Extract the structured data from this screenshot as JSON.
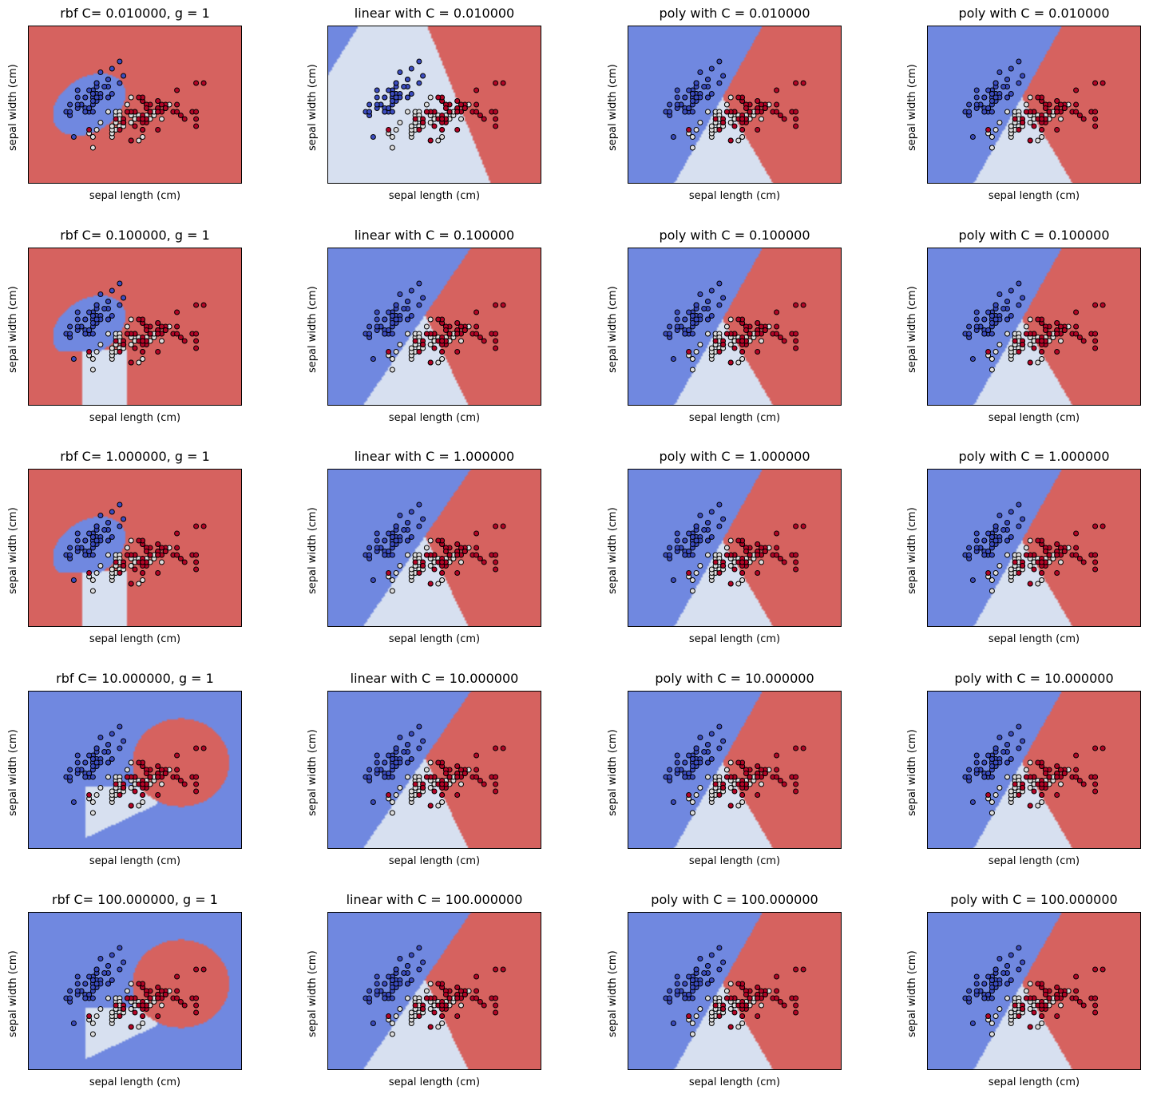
{
  "chart_data": {
    "type": "scatter",
    "layout": "5x4 grid",
    "xlabel": "sepal length (cm)",
    "ylabel": "sepal width (cm)",
    "xlim": [
      3.3,
      8.9
    ],
    "ylim": [
      1.0,
      5.4
    ],
    "ticks_visible": false,
    "class_colors": {
      "setosa": "#3b4cc0",
      "versicolor": "#dddddd",
      "virginica": "#b40426"
    },
    "region_colors": {
      "setosa": "#7088e0",
      "versicolor": "#d7e0f0",
      "virginica": "#d6625f"
    },
    "points": {
      "setosa": [
        [
          5.1,
          3.5
        ],
        [
          4.9,
          3.0
        ],
        [
          4.7,
          3.2
        ],
        [
          4.6,
          3.1
        ],
        [
          5.0,
          3.6
        ],
        [
          5.4,
          3.9
        ],
        [
          4.6,
          3.4
        ],
        [
          5.0,
          3.4
        ],
        [
          4.4,
          2.9
        ],
        [
          4.9,
          3.1
        ],
        [
          5.4,
          3.7
        ],
        [
          4.8,
          3.4
        ],
        [
          4.8,
          3.0
        ],
        [
          4.3,
          3.0
        ],
        [
          5.8,
          4.0
        ],
        [
          5.7,
          4.4
        ],
        [
          5.4,
          3.9
        ],
        [
          5.1,
          3.5
        ],
        [
          5.7,
          3.8
        ],
        [
          5.1,
          3.8
        ],
        [
          5.4,
          3.4
        ],
        [
          5.1,
          3.7
        ],
        [
          4.6,
          3.6
        ],
        [
          5.1,
          3.3
        ],
        [
          4.8,
          3.4
        ],
        [
          5.0,
          3.0
        ],
        [
          5.0,
          3.4
        ],
        [
          5.2,
          3.5
        ],
        [
          5.2,
          3.4
        ],
        [
          4.7,
          3.2
        ],
        [
          4.8,
          3.1
        ],
        [
          5.4,
          3.4
        ],
        [
          5.2,
          4.1
        ],
        [
          5.5,
          4.2
        ],
        [
          4.9,
          3.1
        ],
        [
          5.0,
          3.2
        ],
        [
          5.5,
          3.5
        ],
        [
          4.9,
          3.6
        ],
        [
          4.4,
          3.0
        ],
        [
          5.1,
          3.4
        ],
        [
          5.0,
          3.5
        ],
        [
          4.5,
          2.3
        ],
        [
          4.4,
          3.2
        ],
        [
          5.0,
          3.5
        ],
        [
          5.1,
          3.8
        ],
        [
          4.8,
          3.0
        ],
        [
          5.1,
          3.8
        ],
        [
          4.6,
          3.2
        ],
        [
          5.3,
          3.7
        ],
        [
          5.0,
          3.3
        ]
      ],
      "versicolor": [
        [
          7.0,
          3.2
        ],
        [
          6.4,
          3.2
        ],
        [
          6.9,
          3.1
        ],
        [
          5.5,
          2.3
        ],
        [
          6.5,
          2.8
        ],
        [
          5.7,
          2.8
        ],
        [
          6.3,
          3.3
        ],
        [
          4.9,
          2.4
        ],
        [
          6.6,
          2.9
        ],
        [
          5.2,
          2.7
        ],
        [
          5.0,
          2.0
        ],
        [
          5.9,
          3.0
        ],
        [
          6.0,
          2.2
        ],
        [
          6.1,
          2.9
        ],
        [
          5.6,
          2.9
        ],
        [
          6.7,
          3.1
        ],
        [
          5.6,
          3.0
        ],
        [
          5.8,
          2.7
        ],
        [
          6.2,
          2.2
        ],
        [
          5.6,
          2.5
        ],
        [
          5.9,
          3.2
        ],
        [
          6.1,
          2.8
        ],
        [
          6.3,
          2.5
        ],
        [
          6.1,
          2.8
        ],
        [
          6.4,
          2.9
        ],
        [
          6.6,
          3.0
        ],
        [
          6.8,
          2.8
        ],
        [
          6.7,
          3.0
        ],
        [
          6.0,
          2.9
        ],
        [
          5.7,
          2.6
        ],
        [
          5.5,
          2.4
        ],
        [
          5.5,
          2.4
        ],
        [
          5.8,
          2.7
        ],
        [
          6.0,
          2.7
        ],
        [
          5.4,
          3.0
        ],
        [
          6.0,
          3.4
        ],
        [
          6.7,
          3.1
        ],
        [
          6.3,
          2.3
        ],
        [
          5.6,
          3.0
        ],
        [
          5.5,
          2.5
        ],
        [
          5.5,
          2.6
        ],
        [
          6.1,
          3.0
        ],
        [
          5.8,
          2.6
        ],
        [
          5.0,
          2.3
        ],
        [
          5.6,
          2.7
        ],
        [
          5.7,
          3.0
        ],
        [
          5.7,
          2.9
        ],
        [
          6.2,
          2.9
        ],
        [
          5.1,
          2.5
        ],
        [
          5.7,
          2.8
        ]
      ],
      "virginica": [
        [
          6.3,
          3.3
        ],
        [
          5.8,
          2.7
        ],
        [
          7.1,
          3.0
        ],
        [
          6.3,
          2.9
        ],
        [
          6.5,
          3.0
        ],
        [
          7.6,
          3.0
        ],
        [
          4.9,
          2.5
        ],
        [
          7.3,
          2.9
        ],
        [
          6.7,
          2.5
        ],
        [
          7.2,
          3.6
        ],
        [
          6.5,
          3.2
        ],
        [
          6.4,
          2.7
        ],
        [
          6.8,
          3.0
        ],
        [
          5.7,
          2.5
        ],
        [
          5.8,
          2.8
        ],
        [
          6.4,
          3.2
        ],
        [
          6.5,
          3.0
        ],
        [
          7.7,
          3.8
        ],
        [
          7.7,
          2.6
        ],
        [
          6.0,
          2.2
        ],
        [
          6.9,
          3.2
        ],
        [
          5.6,
          2.8
        ],
        [
          7.7,
          2.8
        ],
        [
          6.3,
          2.7
        ],
        [
          6.7,
          3.3
        ],
        [
          7.2,
          3.2
        ],
        [
          6.2,
          2.8
        ],
        [
          6.1,
          3.0
        ],
        [
          6.4,
          2.8
        ],
        [
          7.2,
          3.0
        ],
        [
          7.4,
          2.8
        ],
        [
          7.9,
          3.8
        ],
        [
          6.4,
          2.8
        ],
        [
          6.3,
          2.8
        ],
        [
          6.1,
          2.6
        ],
        [
          7.7,
          3.0
        ],
        [
          6.3,
          3.4
        ],
        [
          6.4,
          3.1
        ],
        [
          6.0,
          3.0
        ],
        [
          6.9,
          3.1
        ],
        [
          6.7,
          3.1
        ],
        [
          6.9,
          3.1
        ],
        [
          5.8,
          2.7
        ],
        [
          6.8,
          3.2
        ],
        [
          6.7,
          3.3
        ],
        [
          6.7,
          3.0
        ],
        [
          6.3,
          2.5
        ],
        [
          6.5,
          3.0
        ],
        [
          6.2,
          3.4
        ],
        [
          5.9,
          3.0
        ]
      ]
    },
    "panels": [
      {
        "title": "rbf C= 0.010000, g = 1",
        "kernel": "rbf",
        "C": 0.01,
        "gamma": 1
      },
      {
        "title": "linear with C = 0.010000",
        "kernel": "linear",
        "C": 0.01
      },
      {
        "title": "poly with C = 0.010000",
        "kernel": "poly",
        "C": 0.01
      },
      {
        "title": "poly with C = 0.010000",
        "kernel": "poly",
        "C": 0.01
      },
      {
        "title": "rbf C= 0.100000, g = 1",
        "kernel": "rbf",
        "C": 0.1,
        "gamma": 1
      },
      {
        "title": "linear with C = 0.100000",
        "kernel": "linear",
        "C": 0.1
      },
      {
        "title": "poly with C = 0.100000",
        "kernel": "poly",
        "C": 0.1
      },
      {
        "title": "poly with C = 0.100000",
        "kernel": "poly",
        "C": 0.1
      },
      {
        "title": "rbf C= 1.000000, g = 1",
        "kernel": "rbf",
        "C": 1.0,
        "gamma": 1
      },
      {
        "title": "linear with C = 1.000000",
        "kernel": "linear",
        "C": 1.0
      },
      {
        "title": "poly with C = 1.000000",
        "kernel": "poly",
        "C": 1.0
      },
      {
        "title": "poly with C = 1.000000",
        "kernel": "poly",
        "C": 1.0
      },
      {
        "title": "rbf C= 10.000000, g = 1",
        "kernel": "rbf",
        "C": 10.0,
        "gamma": 1
      },
      {
        "title": "linear with C = 10.000000",
        "kernel": "linear",
        "C": 10.0
      },
      {
        "title": "poly with C = 10.000000",
        "kernel": "poly",
        "C": 10.0
      },
      {
        "title": "poly with C = 10.000000",
        "kernel": "poly",
        "C": 10.0
      },
      {
        "title": "rbf C= 100.000000, g = 1",
        "kernel": "rbf",
        "C": 100.0,
        "gamma": 1
      },
      {
        "title": "linear with C = 100.000000",
        "kernel": "linear",
        "C": 100.0
      },
      {
        "title": "poly with C = 100.000000",
        "kernel": "poly",
        "C": 100.0
      },
      {
        "title": "poly with C = 100.000000",
        "kernel": "poly",
        "C": 100.0
      }
    ]
  }
}
